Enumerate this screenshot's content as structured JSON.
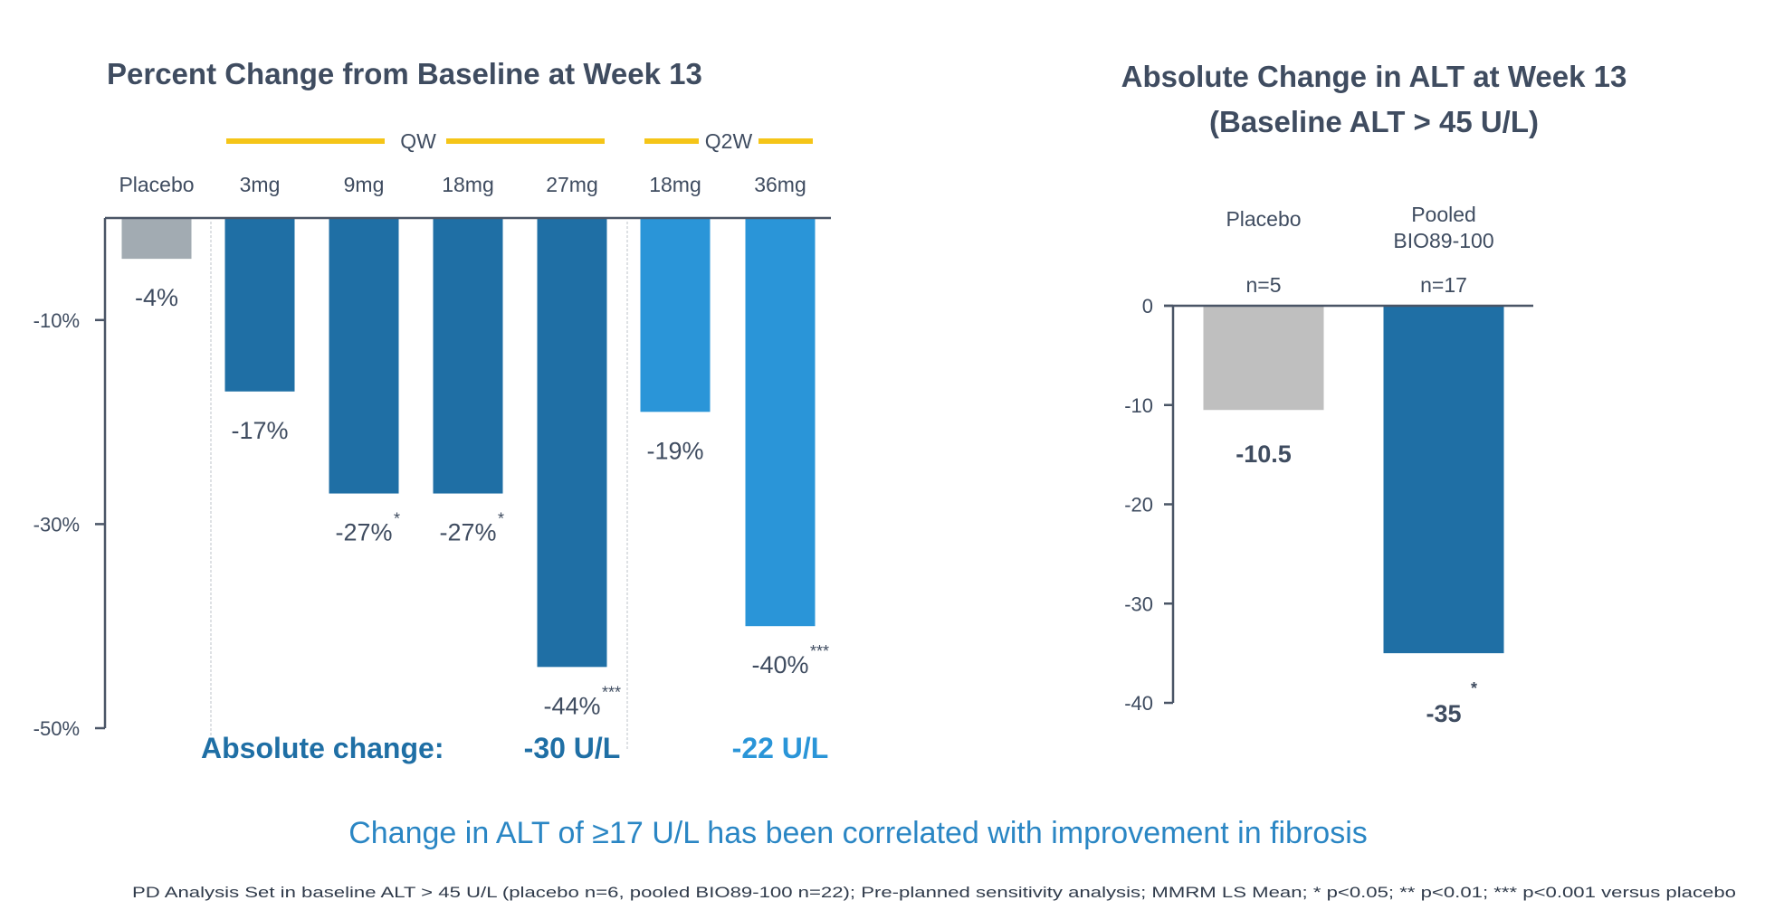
{
  "colors": {
    "placebo_left": "#a2abb2",
    "placebo_right": "#bfbfbf",
    "qw": "#1f6fa5",
    "q2w": "#2a95d8",
    "pooled": "#1f6fa5",
    "axis": "#4a5566",
    "group_line": "#f5c518",
    "text": "#3f4c60",
    "abs_qw": "#1f6fa5",
    "abs_q2w": "#2a95d8",
    "callout": "#2a86c4"
  },
  "chart_data": [
    {
      "type": "bar",
      "title": "Percent Change from Baseline at Week 13",
      "xlabel": "",
      "ylabel": "",
      "ylim": [
        -50,
        0
      ],
      "yticks": [
        -10,
        -30,
        -50
      ],
      "ytick_labels": [
        "-10%",
        "-30%",
        "-50%"
      ],
      "grid": false,
      "groups": [
        {
          "label": "QW",
          "categories": [
            "3mg",
            "9mg",
            "18mg",
            "27mg"
          ]
        },
        {
          "label": "Q2W",
          "categories": [
            "18mg",
            "36mg"
          ]
        }
      ],
      "categories": [
        "Placebo",
        "3mg",
        "9mg",
        "18mg",
        "27mg",
        "18mg",
        "36mg"
      ],
      "category_group": [
        "Placebo",
        "QW",
        "QW",
        "QW",
        "QW",
        "Q2W",
        "Q2W"
      ],
      "values": [
        -4,
        -17,
        -27,
        -27,
        -44,
        -19,
        -40
      ],
      "data_labels": [
        "-4%",
        "-17%",
        "-27%",
        "-27%",
        "-44%",
        "-19%",
        "-40%"
      ],
      "significance": [
        "",
        "",
        "*",
        "*",
        "***",
        "",
        "***"
      ],
      "absolute_change": {
        "label": "Absolute change:",
        "values": [
          {
            "group": "QW 27mg",
            "text": "-30 U/L"
          },
          {
            "group": "Q2W 36mg",
            "text": "-22 U/L"
          }
        ]
      }
    },
    {
      "type": "bar",
      "title": "Absolute Change in ALT at Week 13",
      "subtitle": "(Baseline ALT > 45 U/L)",
      "xlabel": "",
      "ylabel": "",
      "ylim": [
        -40,
        0
      ],
      "yticks": [
        0,
        -10,
        -20,
        -30,
        -40
      ],
      "ytick_labels": [
        "0",
        "-10",
        "-20",
        "-30",
        "-40"
      ],
      "grid": false,
      "categories": [
        "Placebo",
        "Pooled BIO89-100"
      ],
      "category_lines": [
        [
          "Placebo"
        ],
        [
          "Pooled",
          "BIO89-100"
        ]
      ],
      "n_labels": [
        "n=5",
        "n=17"
      ],
      "values": [
        -10.5,
        -35
      ],
      "data_labels": [
        "-10.5",
        "-35"
      ],
      "significance": [
        "",
        "*"
      ]
    }
  ],
  "callout": "Change in ALT of ≥17 U/L has been correlated with improvement in fibrosis",
  "footnote": "PD Analysis Set in baseline ALT > 45 U/L (placebo n=6, pooled BIO89-100 n=22); Pre-planned sensitivity analysis; MMRM LS Mean; * p<0.05; ** p<0.01; *** p<0.001 versus placebo"
}
